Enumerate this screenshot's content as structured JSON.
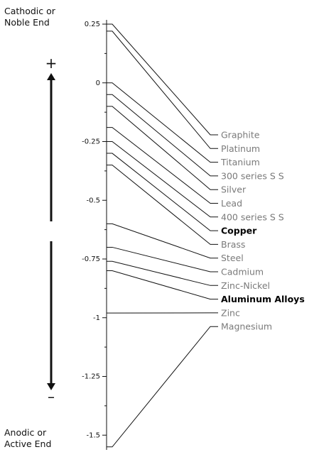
{
  "labels": {
    "top_line1": "Cathodic or",
    "top_line2": "Noble End",
    "bottom_line1": "Anodic or",
    "bottom_line2": "Active End",
    "plus": "+",
    "minus": "–"
  },
  "colors": {
    "line": "#111111",
    "metal_text": "#7a7a7a",
    "highlight_text": "#000000"
  },
  "chart_data": {
    "type": "galvanic-series",
    "axis": {
      "min": -1.55,
      "max": 0.25,
      "ticks": [
        {
          "value": 0.25,
          "label": "0.25"
        },
        {
          "value": 0,
          "label": "0"
        },
        {
          "value": -0.25,
          "label": "-0.25"
        },
        {
          "value": -0.5,
          "label": "-0.5"
        },
        {
          "value": -0.75,
          "label": "-0.75"
        },
        {
          "value": -1,
          "label": "-1"
        },
        {
          "value": -1.25,
          "label": "-1.25"
        },
        {
          "value": -1.5,
          "label": "-1.5"
        }
      ],
      "minor_ticks": [
        0.125,
        -0.125,
        -0.375,
        -0.625,
        -0.875,
        -1.125,
        -1.375
      ]
    },
    "metals": [
      {
        "name": "Graphite",
        "high": 0.25,
        "low": 0.22,
        "bold": false
      },
      {
        "name": "Platinum",
        "high": 0.22,
        "low": 0.18,
        "bold": false
      },
      {
        "name": "Titanium",
        "high": 0.0,
        "low": -0.05,
        "bold": false
      },
      {
        "name": "300 series S S",
        "high": -0.05,
        "low": -0.1,
        "bold": false
      },
      {
        "name": "Silver",
        "high": -0.1,
        "low": -0.15,
        "bold": false
      },
      {
        "name": "Lead",
        "high": -0.19,
        "low": -0.25,
        "bold": false
      },
      {
        "name": "400 series S S",
        "high": -0.25,
        "low": -0.35,
        "bold": false
      },
      {
        "name": "Copper",
        "high": -0.3,
        "low": -0.35,
        "bold": true
      },
      {
        "name": "Brass",
        "high": -0.35,
        "low": -0.4,
        "bold": false
      },
      {
        "name": "Steel",
        "high": -0.6,
        "low": -0.7,
        "bold": false
      },
      {
        "name": "Cadmium",
        "high": -0.7,
        "low": -0.76,
        "bold": false
      },
      {
        "name": "Zinc-Nickel",
        "high": -0.76,
        "low": -0.8,
        "bold": false
      },
      {
        "name": "Aluminum Alloys",
        "high": -0.8,
        "low": -0.9,
        "bold": true
      },
      {
        "name": "Zinc",
        "high": -0.98,
        "low": -1.03,
        "bold": false
      },
      {
        "name": "Magnesium",
        "high": -1.55,
        "low": -1.6,
        "bold": false
      }
    ]
  }
}
